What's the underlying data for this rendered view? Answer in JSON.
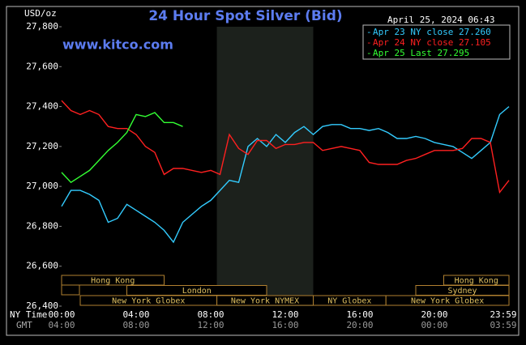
{
  "chart_data": {
    "type": "line",
    "title": "24 Hour Spot Silver (Bid)",
    "site": "www.kitco.com",
    "y_label": "USD/oz",
    "timestamp": "April 25, 2024 06:43",
    "x_label": "NY Time",
    "x2_label": "GMT",
    "x": [
      0,
      0.5,
      1,
      1.5,
      2,
      2.5,
      3,
      3.5,
      4,
      4.5,
      5,
      5.5,
      6,
      6.5,
      7,
      7.5,
      8,
      8.5,
      9,
      9.5,
      10,
      10.5,
      11,
      11.5,
      12,
      12.5,
      13,
      13.5,
      14,
      14.5,
      15,
      15.5,
      16,
      16.5,
      17,
      17.5,
      18,
      18.5,
      19,
      19.5,
      20,
      20.5,
      21,
      21.5,
      22,
      22.5,
      23,
      23.5,
      24
    ],
    "series": [
      {
        "name": "Apr 23 NY close 27.260",
        "color": "#33ccff",
        "values": [
          26.9,
          26.98,
          26.98,
          26.96,
          26.93,
          26.82,
          26.84,
          26.91,
          26.88,
          26.85,
          26.82,
          26.78,
          26.72,
          26.82,
          26.86,
          26.9,
          26.93,
          26.98,
          27.03,
          27.02,
          27.2,
          27.24,
          27.2,
          27.26,
          27.22,
          27.27,
          27.3,
          27.26,
          27.3,
          27.31,
          27.31,
          27.29,
          27.29,
          27.28,
          27.29,
          27.27,
          27.24,
          27.24,
          27.25,
          27.24,
          27.22,
          27.21,
          27.2,
          27.17,
          27.14,
          27.18,
          27.22,
          27.36,
          27.4
        ]
      },
      {
        "name": "Apr 24 NY close 27.105",
        "color": "#ff2020",
        "values": [
          27.43,
          27.38,
          27.36,
          27.38,
          27.36,
          27.3,
          27.29,
          27.29,
          27.26,
          27.2,
          27.17,
          27.06,
          27.09,
          27.09,
          27.08,
          27.07,
          27.08,
          27.06,
          27.26,
          27.19,
          27.16,
          27.23,
          27.23,
          27.19,
          27.21,
          27.21,
          27.22,
          27.22,
          27.18,
          27.19,
          27.2,
          27.19,
          27.18,
          27.12,
          27.11,
          27.11,
          27.11,
          27.13,
          27.14,
          27.16,
          27.18,
          27.18,
          27.18,
          27.19,
          27.24,
          27.24,
          27.22,
          26.97,
          27.03
        ]
      },
      {
        "name": "Apr 25 Last 27.295",
        "color": "#33ff33",
        "values": [
          27.07,
          27.02,
          27.05,
          27.08,
          27.13,
          27.18,
          27.22,
          27.27,
          27.36,
          27.35,
          27.37,
          27.32,
          27.32,
          27.3,
          null,
          null,
          null,
          null,
          null,
          null,
          null,
          null,
          null,
          null,
          null,
          null,
          null,
          null,
          null,
          null,
          null,
          null,
          null,
          null,
          null,
          null,
          null,
          null,
          null,
          null,
          null,
          null,
          null,
          null,
          null,
          null,
          null,
          null,
          null
        ]
      }
    ],
    "xlim": [
      0,
      24
    ],
    "xticks": [
      {
        "value": 0,
        "label": "00:00"
      },
      {
        "value": 4,
        "label": "04:00"
      },
      {
        "value": 8,
        "label": "08:00"
      },
      {
        "value": 12,
        "label": "12:00"
      },
      {
        "value": 16,
        "label": "16:00"
      },
      {
        "value": 20,
        "label": "20:00"
      },
      {
        "value": 23.98,
        "label": "23:59"
      }
    ],
    "x2ticks": [
      {
        "value": 0,
        "label": "04:00"
      },
      {
        "value": 4,
        "label": "08:00"
      },
      {
        "value": 8,
        "label": "12:00"
      },
      {
        "value": 12,
        "label": "16:00"
      },
      {
        "value": 16,
        "label": "20:00"
      },
      {
        "value": 20,
        "label": "00:00"
      },
      {
        "value": 23.98,
        "label": "03:59"
      }
    ],
    "ylim": [
      26.4,
      27.8
    ],
    "yticks": [
      {
        "value": 26.4,
        "label": "26,400"
      },
      {
        "value": 26.6,
        "label": "26,600"
      },
      {
        "value": 26.8,
        "label": "26,800"
      },
      {
        "value": 27.0,
        "label": "27,000"
      },
      {
        "value": 27.2,
        "label": "27,200"
      },
      {
        "value": 27.4,
        "label": "27,400"
      },
      {
        "value": 27.6,
        "label": "27,600"
      },
      {
        "value": 27.8,
        "label": "27,800"
      }
    ],
    "grid": false,
    "session_rows": [
      [
        {
          "label": "Hong Kong",
          "start": 0,
          "end": 5.5
        },
        {
          "label": "Hong Kong",
          "start": 20.5,
          "end": 24
        }
      ],
      [
        {
          "label": "London",
          "start": 3.5,
          "end": 11
        },
        {
          "label": "Sydney",
          "start": 19,
          "end": 24
        }
      ],
      [
        {
          "label": "New York Globex",
          "start": 1,
          "end": 8.33
        },
        {
          "label": "New York NYMEX",
          "start": 8.33,
          "end": 13.5,
          "shade": true
        },
        {
          "label": "NY Globex",
          "start": 13.5,
          "end": 17.4
        },
        {
          "label": "New York Globex",
          "start": 17.4,
          "end": 24
        }
      ]
    ]
  }
}
